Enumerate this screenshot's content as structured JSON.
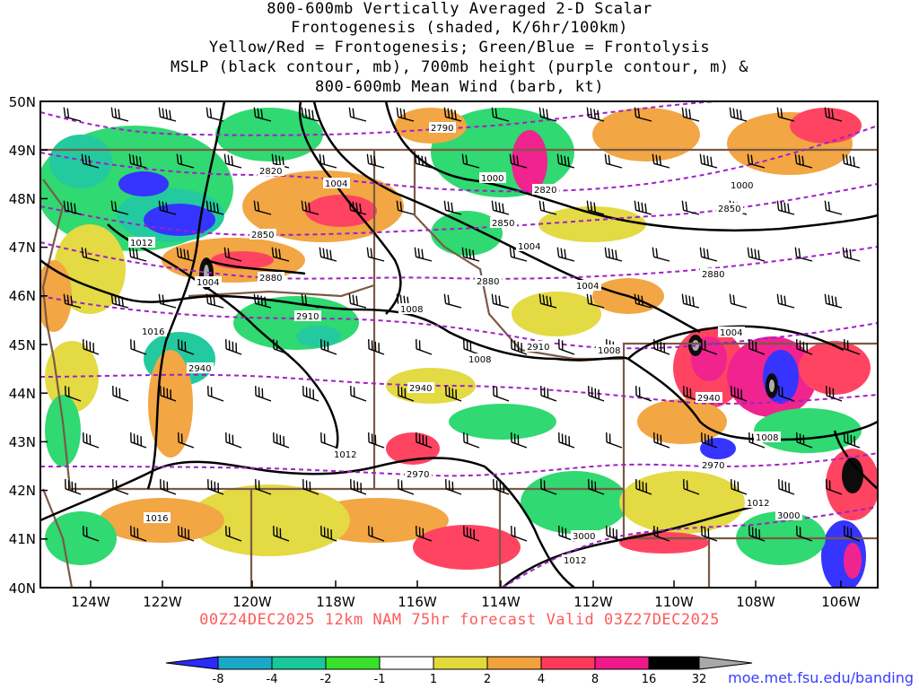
{
  "title": {
    "lines": [
      "800-600mb Vertically Averaged 2-D Scalar",
      "Frontogenesis (shaded, K/6hr/100km)",
      "Yellow/Red = Frontogenesis;  Green/Blue = Frontolysis",
      "MSLP (black contour, mb), 700mb height (purple contour, m) &",
      "800-600mb Mean Wind (barb, kt)"
    ]
  },
  "axes": {
    "lat_labels": [
      "50N",
      "49N",
      "48N",
      "47N",
      "46N",
      "45N",
      "44N",
      "43N",
      "42N",
      "41N",
      "40N"
    ],
    "lon_labels": [
      "124W",
      "122W",
      "120W",
      "118W",
      "116W",
      "114W",
      "112W",
      "110W",
      "108W",
      "106W"
    ]
  },
  "mslp_labels": [
    "1000",
    "1000",
    "1004",
    "1004",
    "1004",
    "1004",
    "1008",
    "1008",
    "1008",
    "1008",
    "1012",
    "1012",
    "1012",
    "1012",
    "1016",
    "1016",
    "1004"
  ],
  "height_labels": [
    "2790",
    "2820",
    "2820",
    "2850",
    "2850",
    "2850",
    "2880",
    "2880",
    "2880",
    "2910",
    "2910",
    "2940",
    "2940",
    "2940",
    "2970",
    "2970",
    "3000",
    "3000"
  ],
  "colorbar": {
    "labels": [
      "-8",
      "-4",
      "-2",
      "-1",
      "1",
      "2",
      "4",
      "8",
      "16",
      "32"
    ],
    "colors": [
      "#2b2bff",
      "#1aa8c8",
      "#18c89a",
      "#25d86a",
      "#38e22a",
      "#ffffff",
      "#e2d93a",
      "#f2a23a",
      "#f6703a",
      "#ff3a5a",
      "#f0188a",
      "#000000",
      "#a8a8a8"
    ]
  },
  "footer": "00Z24DEC2025 12km NAM 75hr forecast Valid 03Z27DEC2025",
  "credit": "moe.met.fsu.edu/banding"
}
